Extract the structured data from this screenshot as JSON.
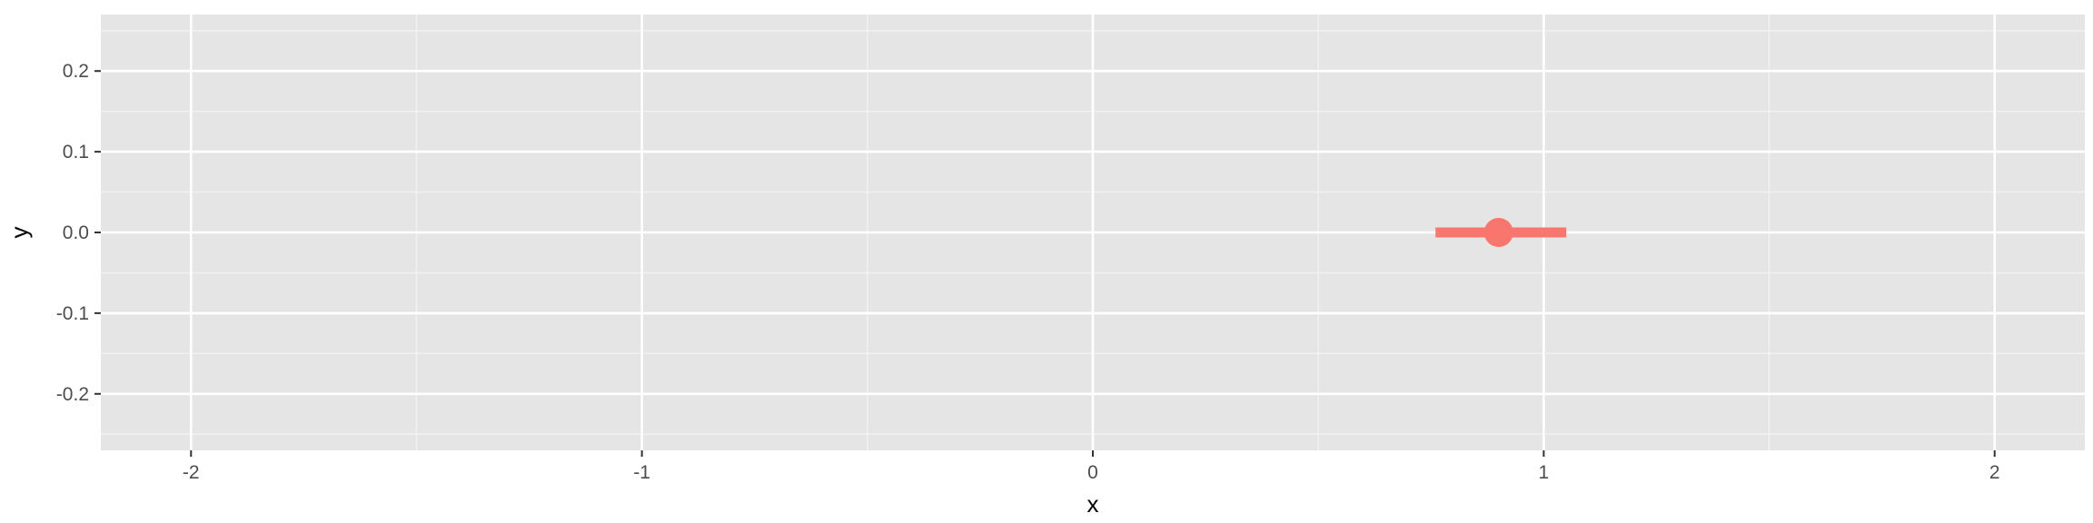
{
  "chart_data": {
    "type": "pointrange",
    "xlabel": "x",
    "ylabel": "y",
    "xlim": [
      -2.2,
      2.2
    ],
    "ylim": [
      -0.27,
      0.27
    ],
    "x_ticks": [
      -2,
      -1,
      0,
      1,
      2
    ],
    "x_tick_labels": [
      "-2",
      "-1",
      "0",
      "1",
      "2"
    ],
    "y_ticks": [
      -0.2,
      -0.1,
      0.0,
      0.1,
      0.2
    ],
    "y_tick_labels": [
      "-0.2",
      "-0.1",
      "0.0",
      "0.1",
      "0.2"
    ],
    "grid": true,
    "points": [
      {
        "x": 0.9,
        "y": 0.0,
        "xmin": 0.76,
        "xmax": 1.05
      }
    ],
    "colors": {
      "point": "#F8766D",
      "panel_background": "#E5E5E5",
      "grid_major": "#FFFFFF",
      "grid_minor": "#F2F2F2"
    }
  }
}
